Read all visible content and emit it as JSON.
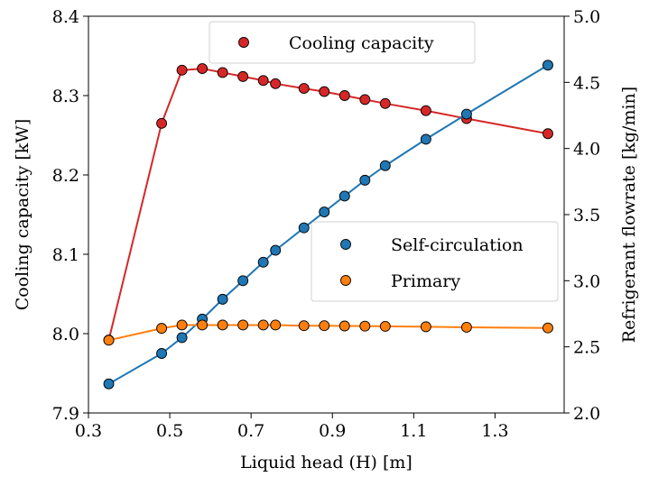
{
  "chart_data": {
    "type": "scatter",
    "xlabel": "Liquid head (H) [m]",
    "ylabel_left": "Cooling capacity [kW]",
    "ylabel_right": "Refrigerant flowrate [kg/min]",
    "x_ticks": [
      "0.3",
      "0.5",
      "0.7",
      "0.9",
      "1.1",
      "1.3"
    ],
    "x_tick_values": [
      0.3,
      0.5,
      0.7,
      0.9,
      1.1,
      1.3
    ],
    "y_left_ticks": [
      "7.9",
      "8.0",
      "8.1",
      "8.2",
      "8.3",
      "8.4"
    ],
    "y_left_tick_values": [
      7.9,
      8.0,
      8.1,
      8.2,
      8.3,
      8.4
    ],
    "y_right_ticks": [
      "2.0",
      "2.5",
      "3.0",
      "3.5",
      "4.0",
      "4.5",
      "5.0"
    ],
    "y_right_tick_values": [
      2.0,
      2.5,
      3.0,
      3.5,
      4.0,
      4.5,
      5.0
    ],
    "xlim": [
      0.3,
      1.47
    ],
    "ylim_left": [
      7.9,
      8.4
    ],
    "ylim_right": [
      2.0,
      5.0
    ],
    "grid": false,
    "series": [
      {
        "name": "Cooling capacity",
        "axis": "left",
        "color": "#d62728",
        "x": [
          0.35,
          0.48,
          0.53,
          0.58,
          0.63,
          0.68,
          0.73,
          0.76,
          0.83,
          0.88,
          0.93,
          0.98,
          1.03,
          1.13,
          1.23,
          1.43
        ],
        "y": [
          7.992,
          8.265,
          8.332,
          8.334,
          8.329,
          8.324,
          8.319,
          8.315,
          8.309,
          8.305,
          8.3,
          8.295,
          8.29,
          8.281,
          8.271,
          8.252
        ]
      },
      {
        "name": "Self-circulation",
        "axis": "right",
        "color": "#1f77b4",
        "x": [
          0.35,
          0.48,
          0.53,
          0.58,
          0.63,
          0.68,
          0.73,
          0.76,
          0.83,
          0.88,
          0.93,
          0.98,
          1.03,
          1.13,
          1.23,
          1.43
        ],
        "y": [
          2.22,
          2.45,
          2.57,
          2.71,
          2.86,
          3.0,
          3.14,
          3.23,
          3.4,
          3.52,
          3.64,
          3.76,
          3.87,
          4.07,
          4.26,
          4.63
        ]
      },
      {
        "name": "Primary",
        "axis": "right",
        "color": "#ff7f0e",
        "x": [
          0.35,
          0.48,
          0.53,
          0.58,
          0.63,
          0.68,
          0.73,
          0.76,
          0.83,
          0.88,
          0.93,
          0.98,
          1.03,
          1.13,
          1.23,
          1.43
        ],
        "y": [
          2.55,
          2.64,
          2.665,
          2.665,
          2.665,
          2.665,
          2.665,
          2.665,
          2.66,
          2.66,
          2.658,
          2.657,
          2.655,
          2.652,
          2.648,
          2.643
        ]
      }
    ],
    "legends": [
      {
        "entries": [
          "Cooling capacity"
        ],
        "placement": "top-center"
      },
      {
        "entries": [
          "Self-circulation",
          "Primary"
        ],
        "placement": "center-right"
      }
    ]
  }
}
